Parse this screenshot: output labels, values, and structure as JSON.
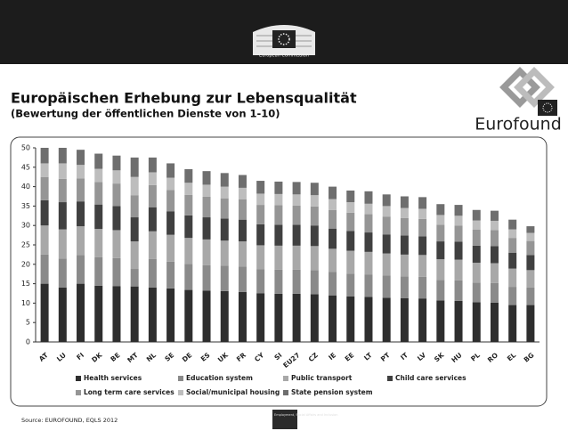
{
  "header": {
    "org": "European Commission",
    "title": "Europäischen Erhebung zur Lebensqualität",
    "subtitle": "(Bewertung der öffentlichen Dienste von 1-10)",
    "logo": "Eurofound",
    "source": "Source: EUROFOUND, EQLS 2012",
    "footer_badge": "Employment, Social Affairs and Inclusion"
  },
  "chart_data": {
    "type": "stacked_bar",
    "categories": [
      "AT",
      "LU",
      "FI",
      "DK",
      "BE",
      "MT",
      "NL",
      "SE",
      "DE",
      "ES",
      "UK",
      "FR",
      "CY",
      "SI",
      "EU27",
      "CZ",
      "IE",
      "EE",
      "LT",
      "PT",
      "IT",
      "LV",
      "SK",
      "HU",
      "PL",
      "RO",
      "EL",
      "BG"
    ],
    "series": [
      {
        "name": "Health services",
        "color": "#2e2e2e",
        "values": [
          15,
          14,
          15,
          14.5,
          14.4,
          14.3,
          14,
          13.8,
          13.4,
          13.2,
          13.1,
          12.9,
          12.5,
          12.4,
          12.4,
          12.3,
          12,
          11.7,
          11.6,
          11.4,
          11.3,
          11.2,
          10.7,
          10.6,
          10.2,
          10.1,
          9.5,
          9.5
        ]
      },
      {
        "name": "Education system",
        "color": "#8a8a8a",
        "values": [
          7.5,
          7.5,
          7.4,
          7.3,
          7.2,
          4.5,
          7.4,
          6.9,
          6.7,
          6.6,
          6.5,
          6.5,
          6.2,
          6.2,
          6.2,
          6.2,
          6,
          5.9,
          5.8,
          5.7,
          5.6,
          5.6,
          5.3,
          5.3,
          5.1,
          5.1,
          4.7,
          4.5
        ]
      },
      {
        "name": "Public transport",
        "color": "#a8a8a8",
        "values": [
          7.5,
          7.5,
          7.4,
          7.3,
          7.2,
          7.1,
          7.1,
          6.9,
          6.7,
          6.6,
          6.5,
          6.5,
          6.2,
          6.2,
          6.2,
          6.2,
          6,
          5.9,
          5.8,
          5.7,
          5.6,
          5.6,
          5.3,
          5.3,
          5.1,
          5.1,
          4.7,
          4.5
        ]
      },
      {
        "name": "Child care services",
        "color": "#404040",
        "values": [
          6.5,
          7,
          6.4,
          6.3,
          6.2,
          6.2,
          6.2,
          6,
          5.8,
          5.7,
          5.7,
          5.6,
          5.4,
          5.4,
          5.4,
          5.3,
          5.2,
          5.1,
          5,
          4.9,
          4.9,
          4.8,
          4.6,
          4.6,
          4.4,
          4.4,
          4.1,
          3.9
        ]
      },
      {
        "name": "Long term care services",
        "color": "#959595",
        "values": [
          6,
          6,
          5.9,
          5.8,
          5.8,
          5.7,
          5.7,
          5.5,
          5.3,
          5.3,
          5.2,
          5.2,
          5,
          5,
          4.9,
          4.9,
          4.8,
          4.7,
          4.7,
          4.6,
          4.5,
          4.5,
          4.3,
          4.2,
          4.1,
          4.1,
          3.8,
          3.6
        ]
      },
      {
        "name": "Social/municipal housing",
        "color": "#bdbdbd",
        "values": [
          3.5,
          4,
          3.5,
          3.4,
          3.4,
          4.7,
          3.3,
          3.2,
          3.1,
          3.1,
          3,
          3,
          2.9,
          2.9,
          2.9,
          2.9,
          2.8,
          2.7,
          2.7,
          2.7,
          2.6,
          2.6,
          2.5,
          2.5,
          2.4,
          2.4,
          2.2,
          2.1
        ]
      },
      {
        "name": "State pension system",
        "color": "#6e6e6e",
        "values": [
          4,
          4,
          3.9,
          3.9,
          3.8,
          5,
          3.8,
          3.7,
          3.5,
          3.5,
          3.5,
          3.3,
          3.3,
          3.2,
          3.2,
          3.2,
          3.2,
          3,
          3.2,
          3,
          3,
          3,
          2.8,
          2.8,
          2.7,
          2.6,
          2.5,
          1.7
        ]
      }
    ],
    "ylim": [
      0,
      50
    ],
    "yticks": [
      0,
      5,
      10,
      15,
      20,
      25,
      30,
      35,
      40,
      45,
      50
    ],
    "grid": false
  }
}
